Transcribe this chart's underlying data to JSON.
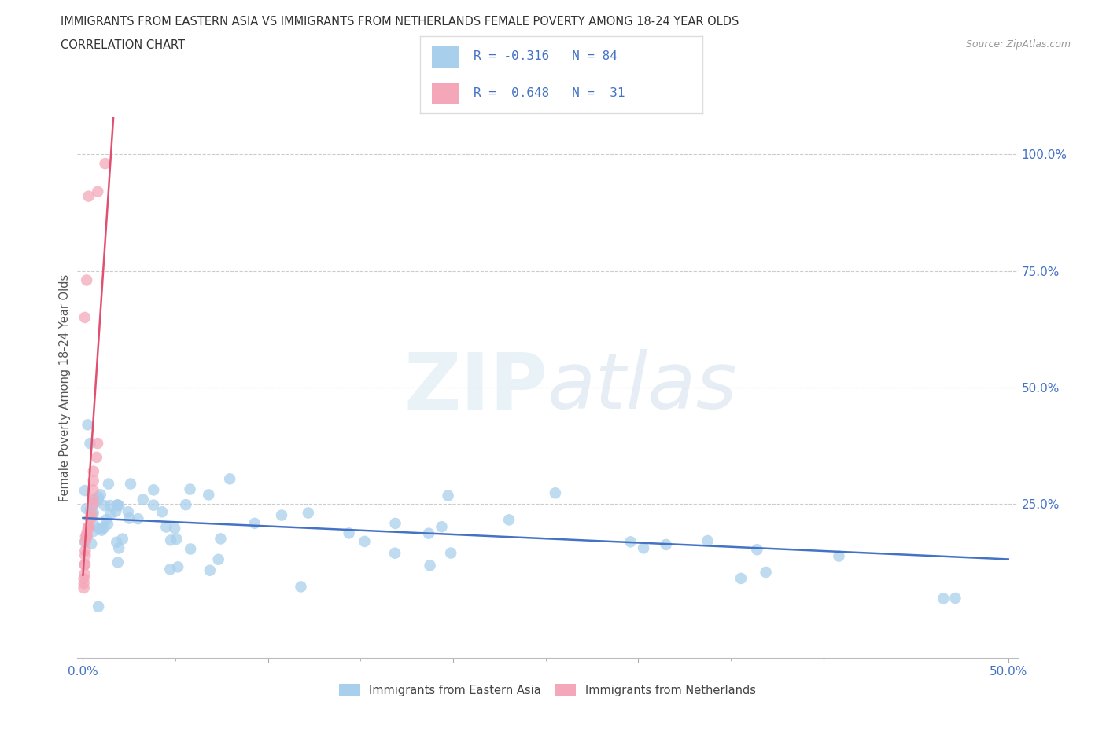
{
  "title_line1": "IMMIGRANTS FROM EASTERN ASIA VS IMMIGRANTS FROM NETHERLANDS FEMALE POVERTY AMONG 18-24 YEAR OLDS",
  "title_line2": "CORRELATION CHART",
  "source": "Source: ZipAtlas.com",
  "ylabel": "Female Poverty Among 18-24 Year Olds",
  "legend_label1": "Immigrants from Eastern Asia",
  "legend_label2": "Immigrants from Netherlands",
  "R1": -0.316,
  "N1": 84,
  "R2": 0.648,
  "N2": 31,
  "xlim": [
    -0.003,
    0.505
  ],
  "ylim": [
    -0.08,
    1.08
  ],
  "color_blue": "#A8CFEC",
  "color_pink": "#F4A7B9",
  "line_blue": "#4472C4",
  "line_pink": "#E05070",
  "background": "#FFFFFF",
  "grid_color": "#CCCCCC",
  "watermark1": "ZIP",
  "watermark2": "atlas"
}
